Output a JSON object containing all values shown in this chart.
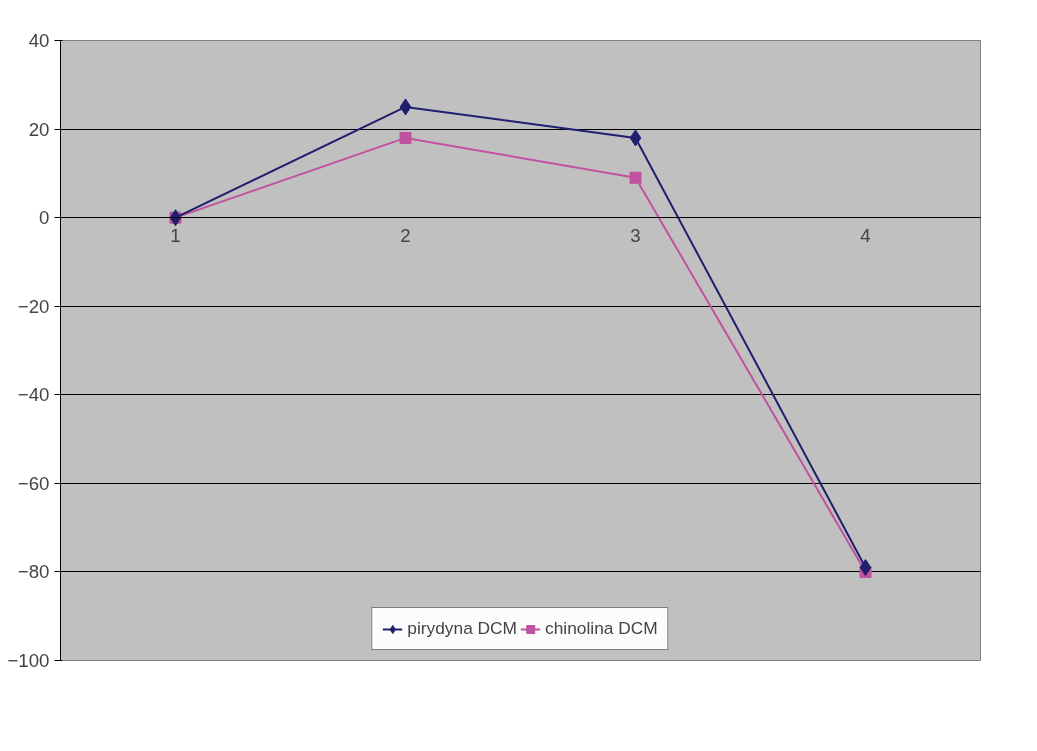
{
  "chart_data": {
    "type": "line",
    "categories": [
      "1",
      "2",
      "3",
      "4"
    ],
    "series": [
      {
        "name": "pirydyna DCM",
        "color": "#1f1f6e",
        "marker": "diamond",
        "values": [
          0,
          25,
          18,
          -79
        ]
      },
      {
        "name": "chinolina DCM",
        "color": "#c0529f",
        "marker": "square",
        "values": [
          0,
          18,
          9,
          -80
        ]
      }
    ],
    "ylim": [
      -100,
      40
    ],
    "yticks": [
      -100,
      -80,
      -60,
      -40,
      -20,
      0,
      20,
      40
    ],
    "grid": "y",
    "legend": "bottom"
  }
}
